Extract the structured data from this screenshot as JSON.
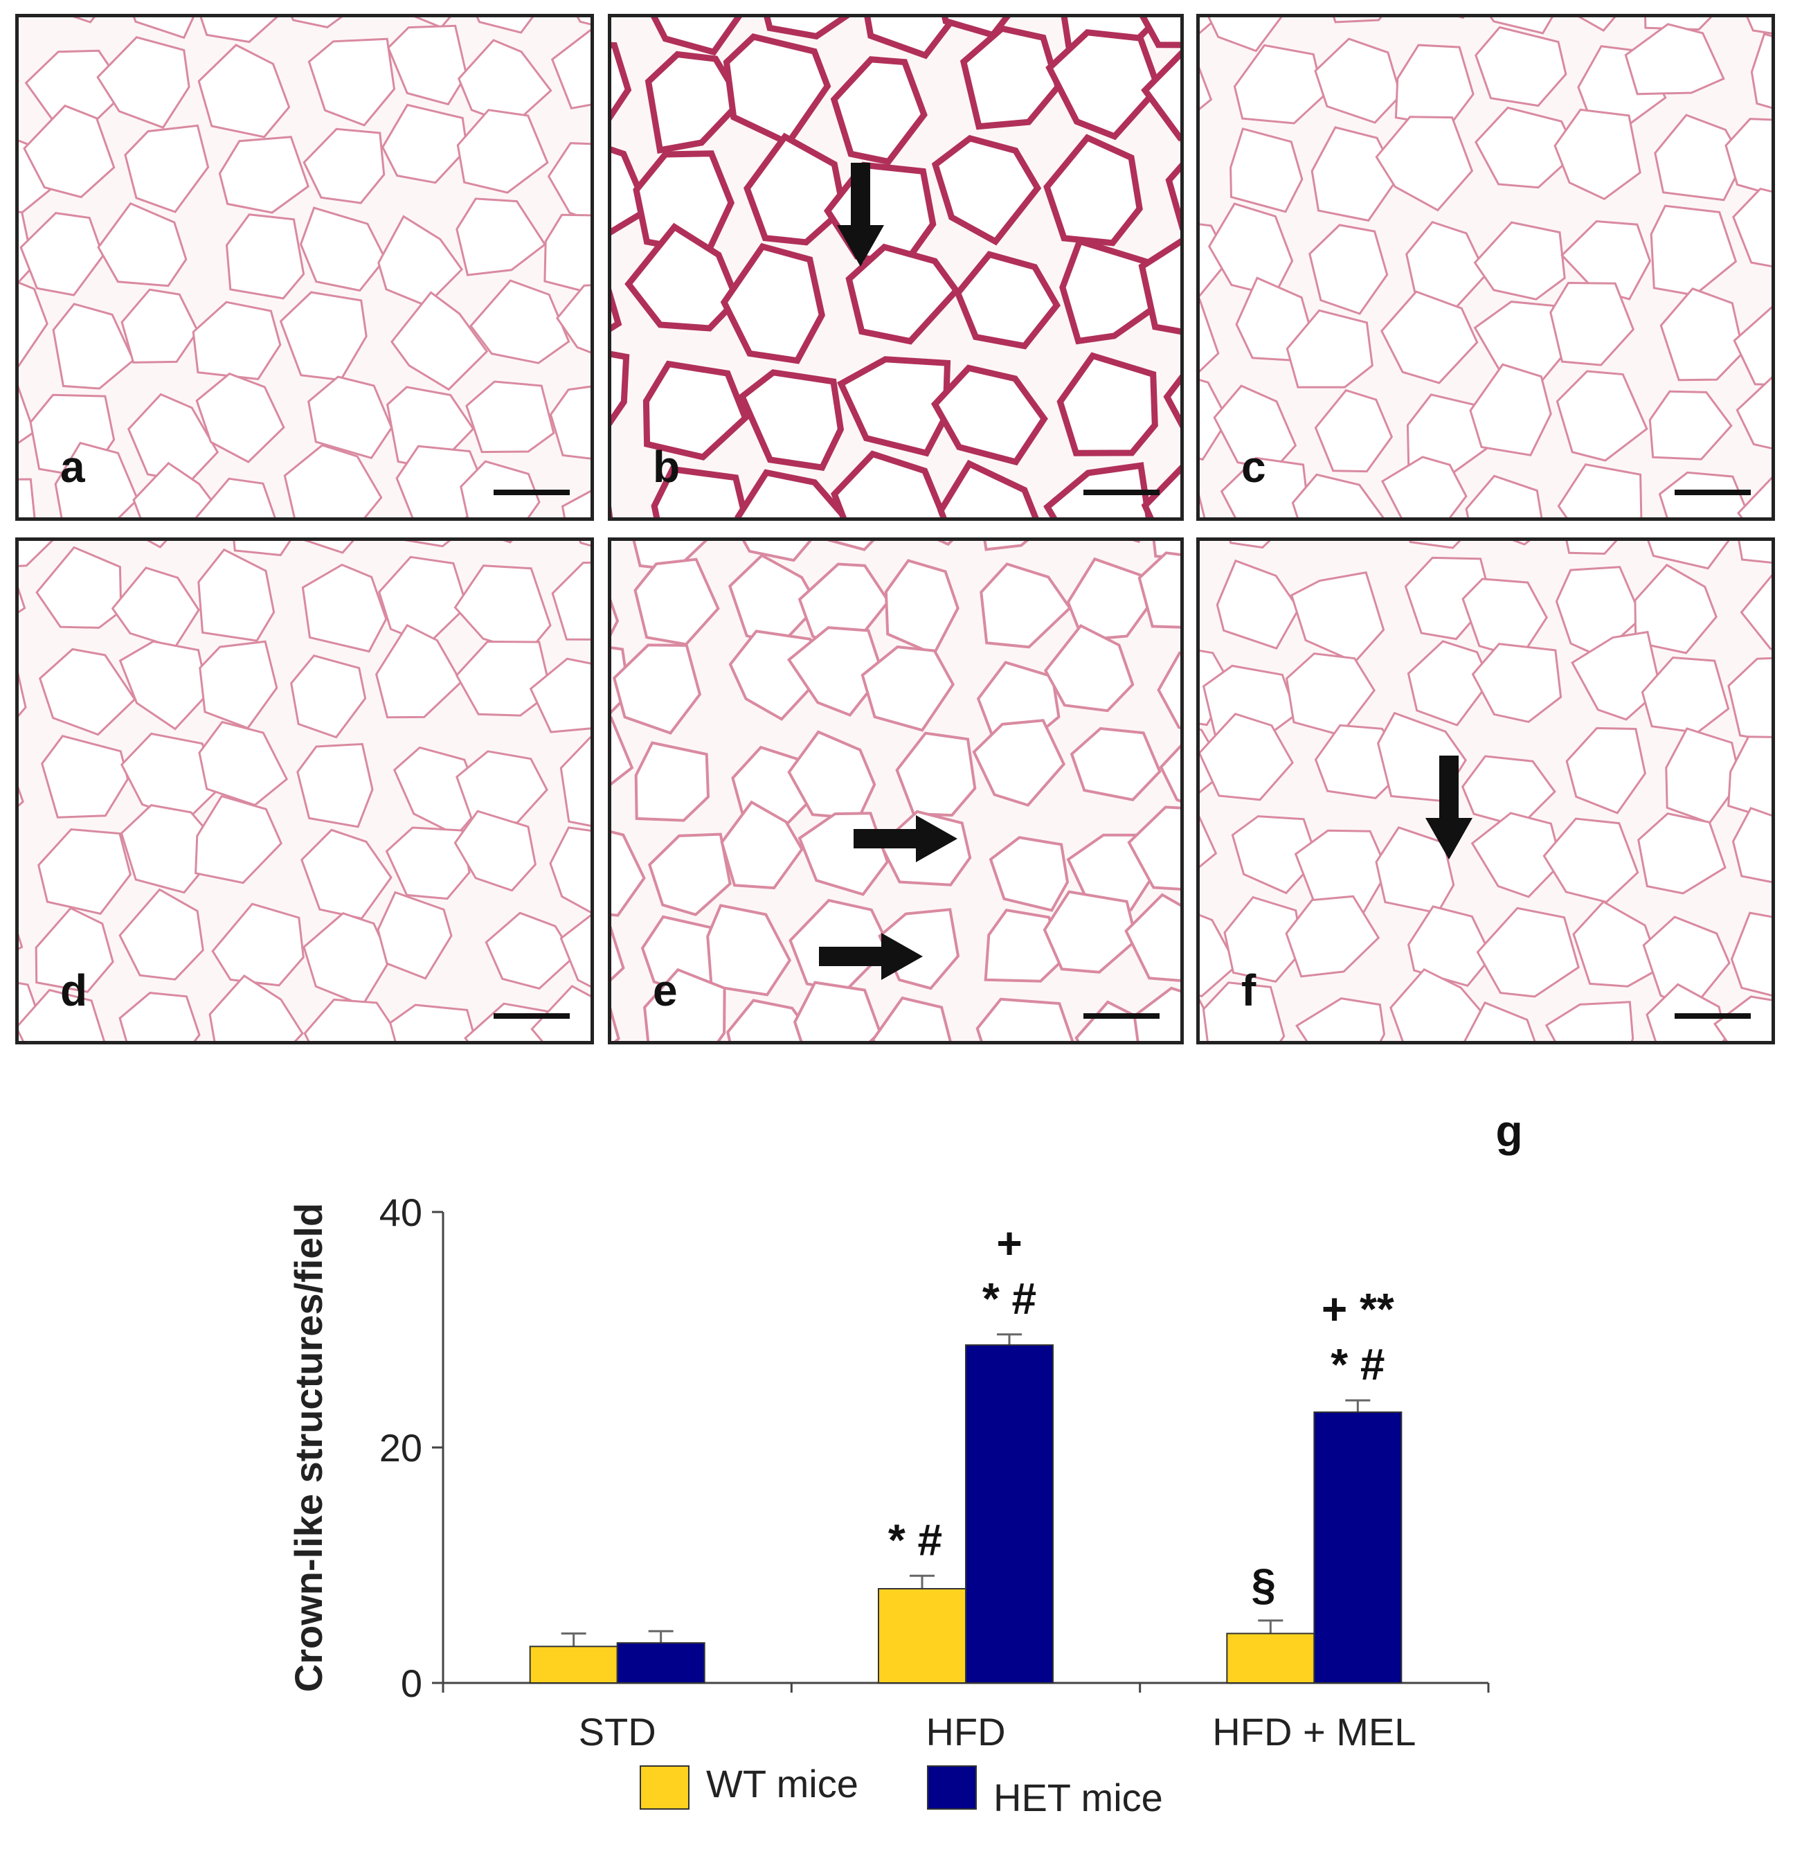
{
  "panels": [
    {
      "letter": "a",
      "stain": "light"
    },
    {
      "letter": "b",
      "stain": "dark"
    },
    {
      "letter": "c",
      "stain": "light"
    },
    {
      "letter": "d",
      "stain": "light"
    },
    {
      "letter": "e",
      "stain": "medium"
    },
    {
      "letter": "f",
      "stain": "light"
    }
  ],
  "chart_panel_letter": "g",
  "colors": {
    "wt": "#FFD21F",
    "het": "#00008B",
    "cell_wall": "#d98aa0",
    "dark_cell_wall": "#b0305a"
  },
  "chart_data": {
    "type": "bar",
    "categories": [
      "STD",
      "HFD",
      "HFD + MEL"
    ],
    "ylabel": "Crown-like structures/field",
    "ylim": [
      0,
      40
    ],
    "yticks": [
      "0",
      "20",
      "40"
    ],
    "series": [
      {
        "name": "WT mice",
        "values": [
          3.1,
          8.0,
          4.2
        ],
        "errors": [
          1.1,
          1.1,
          1.1
        ]
      },
      {
        "name": "HET mice",
        "values": [
          3.4,
          28.7,
          23.0
        ],
        "errors": [
          1.0,
          0.9,
          1.0
        ]
      }
    ],
    "annotations": [
      {
        "category": 1,
        "series": 0,
        "lines": [
          "*  #"
        ]
      },
      {
        "category": 1,
        "series": 1,
        "lines": [
          "+",
          "*  #"
        ]
      },
      {
        "category": 2,
        "series": 0,
        "lines": [
          "§"
        ]
      },
      {
        "category": 2,
        "series": 1,
        "lines": [
          "+    **",
          "*  #"
        ]
      }
    ],
    "legend_position": "bottom"
  }
}
